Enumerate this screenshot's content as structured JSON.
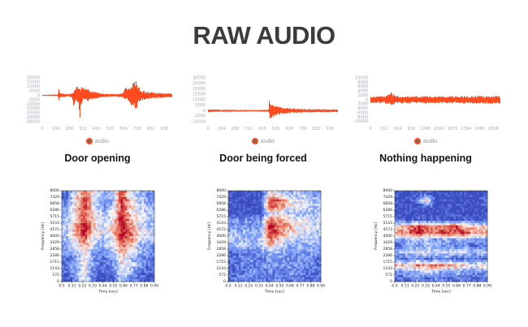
{
  "page": {
    "title": "RAW AUDIO",
    "background": "#ffffff"
  },
  "colors": {
    "waveform": "#ff4b1f",
    "axis_text": "#a4a9b4",
    "title_text": "#3b3b3b",
    "spectro_axis_text": "#222222",
    "legend_text": "#9a9a9a"
  },
  "legend": {
    "label": "audio",
    "marker_color": "#ff4b1f",
    "marker_center": "#6b6b6b"
  },
  "sections": [
    {
      "label": "Door opening"
    },
    {
      "label": "Door being forced"
    },
    {
      "label": "Nothing happening"
    }
  ],
  "chart_data": [
    {
      "name": "waveform-door-opening",
      "type": "line",
      "series": [
        {
          "name": "audio"
        }
      ],
      "color": "#ff4b1f",
      "x_range": [
        0,
        990
      ],
      "y_range": [
        -31500,
        21500
      ],
      "x_ticks": [
        0,
        104,
        208,
        312,
        416,
        520,
        624,
        728,
        832,
        936
      ],
      "y_ticks": [
        20000,
        15000,
        10000,
        5000,
        0,
        -5000,
        -10000,
        -15000,
        -20000,
        -25000,
        -30000
      ],
      "envelope": [
        [
          0,
          600,
          -600
        ],
        [
          40,
          700,
          -700
        ],
        [
          80,
          900,
          -900
        ],
        [
          105,
          1100,
          -1100
        ],
        [
          118,
          1500,
          -1200
        ],
        [
          125,
          8200,
          -5800
        ],
        [
          132,
          2600,
          -2600
        ],
        [
          150,
          2100,
          -2100
        ],
        [
          175,
          1600,
          -1600
        ],
        [
          205,
          1500,
          -1500
        ],
        [
          228,
          3500,
          -4500
        ],
        [
          238,
          4500,
          -12500
        ],
        [
          248,
          8000,
          -8000
        ],
        [
          262,
          11500,
          -8500
        ],
        [
          275,
          9000,
          -9500
        ],
        [
          288,
          6500,
          -27000
        ],
        [
          296,
          12000,
          -9000
        ],
        [
          310,
          9500,
          -7500
        ],
        [
          325,
          8000,
          -6500
        ],
        [
          340,
          7000,
          -7500
        ],
        [
          356,
          6200,
          -6200
        ],
        [
          372,
          5200,
          -5200
        ],
        [
          395,
          4200,
          -4200
        ],
        [
          425,
          2800,
          -2800
        ],
        [
          455,
          2000,
          -2000
        ],
        [
          490,
          1800,
          -1800
        ],
        [
          525,
          1600,
          -1600
        ],
        [
          558,
          1500,
          -1500
        ],
        [
          588,
          1800,
          -1800
        ],
        [
          612,
          2200,
          -2200
        ],
        [
          628,
          6000,
          -4000
        ],
        [
          638,
          17000,
          -7000
        ],
        [
          648,
          6000,
          -5000
        ],
        [
          662,
          8500,
          -8500
        ],
        [
          678,
          11000,
          -11500
        ],
        [
          695,
          14000,
          -13000
        ],
        [
          708,
          20000,
          -14500
        ],
        [
          722,
          13500,
          -15000
        ],
        [
          736,
          10000,
          -9000
        ],
        [
          750,
          7500,
          -6500
        ],
        [
          765,
          5500,
          -5500
        ],
        [
          790,
          4300,
          -4300
        ],
        [
          820,
          3700,
          -3700
        ],
        [
          850,
          3200,
          -3200
        ],
        [
          882,
          2900,
          -2900
        ],
        [
          912,
          2600,
          -2600
        ],
        [
          942,
          2400,
          -2400
        ],
        [
          970,
          2200,
          -2200
        ],
        [
          990,
          2100,
          -2100
        ]
      ]
    },
    {
      "name": "waveform-door-being-forced",
      "type": "line",
      "series": [
        {
          "name": "audio"
        }
      ],
      "color": "#ff4b1f",
      "x_range": [
        0,
        990
      ],
      "y_range": [
        -11500,
        31500
      ],
      "x_ticks": [
        0,
        104,
        208,
        312,
        416,
        520,
        624,
        728,
        832,
        936
      ],
      "y_ticks": [
        30000,
        25000,
        20000,
        15000,
        10000,
        5000,
        0,
        -5000,
        -10000
      ],
      "envelope": [
        [
          0,
          1300,
          -1300
        ],
        [
          40,
          1100,
          -1100
        ],
        [
          90,
          950,
          -950
        ],
        [
          150,
          900,
          -900
        ],
        [
          210,
          850,
          -850
        ],
        [
          270,
          800,
          -800
        ],
        [
          330,
          750,
          -750
        ],
        [
          390,
          750,
          -750
        ],
        [
          435,
          800,
          -800
        ],
        [
          458,
          950,
          -950
        ],
        [
          465,
          1500,
          -1500
        ],
        [
          469,
          26000,
          -4500
        ],
        [
          473,
          9000,
          -7800
        ],
        [
          480,
          6500,
          -6800
        ],
        [
          492,
          5500,
          -5600
        ],
        [
          508,
          4800,
          -4900
        ],
        [
          524,
          4200,
          -4300
        ],
        [
          542,
          3700,
          -3700
        ],
        [
          562,
          3200,
          -3200
        ],
        [
          584,
          2800,
          -2800
        ],
        [
          608,
          2500,
          -2500
        ],
        [
          635,
          2200,
          -2200
        ],
        [
          665,
          2000,
          -2000
        ],
        [
          700,
          1800,
          -1800
        ],
        [
          740,
          1600,
          -1600
        ],
        [
          785,
          1500,
          -1500
        ],
        [
          835,
          1400,
          -1400
        ],
        [
          885,
          1350,
          -1350
        ],
        [
          935,
          1300,
          -1300
        ],
        [
          990,
          1250,
          -1250
        ]
      ]
    },
    {
      "name": "waveform-nothing-happening",
      "type": "line",
      "series": [
        {
          "name": "audio"
        }
      ],
      "color": "#ff4b1f",
      "x_range": [
        0,
        2950
      ],
      "y_range": [
        -10800,
        10800
      ],
      "x_ticks": [
        0,
        312,
        624,
        936,
        1248,
        1560,
        1872,
        2184,
        2496,
        2808
      ],
      "y_ticks": [
        10000,
        8000,
        6000,
        4000,
        2000,
        0,
        -2000,
        -4000,
        -6000,
        -8000,
        -10000
      ],
      "envelope": [
        [
          0,
          1400,
          -1400
        ],
        [
          150,
          1500,
          -1500
        ],
        [
          300,
          1700,
          -1600
        ],
        [
          380,
          2000,
          -1800
        ],
        [
          430,
          2900,
          -2100
        ],
        [
          465,
          3600,
          -2400
        ],
        [
          500,
          2600,
          -2200
        ],
        [
          560,
          2000,
          -1900
        ],
        [
          650,
          1700,
          -1700
        ],
        [
          800,
          1550,
          -1550
        ],
        [
          950,
          1650,
          -1650
        ],
        [
          1100,
          1500,
          -1500
        ],
        [
          1250,
          1600,
          -1550
        ],
        [
          1400,
          1500,
          -1500
        ],
        [
          1550,
          1600,
          -1600
        ],
        [
          1700,
          1500,
          -1500
        ],
        [
          1850,
          1700,
          -1650
        ],
        [
          2000,
          1550,
          -1550
        ],
        [
          2150,
          1750,
          -1700
        ],
        [
          2300,
          1600,
          -1600
        ],
        [
          2450,
          1850,
          -1750
        ],
        [
          2600,
          1600,
          -1600
        ],
        [
          2750,
          1700,
          -1700
        ],
        [
          2870,
          1800,
          -1750
        ],
        [
          2950,
          1650,
          -1650
        ]
      ]
    },
    {
      "name": "spectrogram-door-opening",
      "type": "heatmap",
      "x_label": "Time [sec]",
      "y_label": "Frequency [Hz]",
      "x_ticks": [
        "0.0",
        "0.11",
        "0.22",
        "0.33",
        "0.44",
        "0.55",
        "0.66",
        "0.77",
        "0.88",
        "0.99"
      ],
      "y_ticks": [
        8000,
        7429,
        6858,
        6286,
        5715,
        5143,
        4572,
        4000,
        3429,
        2858,
        2286,
        1715,
        1143,
        572,
        0
      ],
      "colormap": "coolwarm",
      "intensity_scale": [
        0,
        9
      ],
      "grid": [
        [
          1,
          4,
          7,
          4,
          3,
          3,
          8,
          4,
          3,
          2
        ],
        [
          1,
          5,
          8,
          4,
          2,
          3,
          8,
          5,
          3,
          2
        ],
        [
          2,
          5,
          8,
          4,
          2,
          3,
          8,
          5,
          4,
          3
        ],
        [
          2,
          5,
          7,
          5,
          3,
          4,
          8,
          5,
          4,
          3
        ],
        [
          3,
          5,
          8,
          5,
          3,
          4,
          9,
          6,
          4,
          3
        ],
        [
          3,
          6,
          9,
          5,
          4,
          5,
          9,
          6,
          4,
          3
        ],
        [
          3,
          6,
          9,
          5,
          4,
          5,
          9,
          7,
          5,
          4
        ],
        [
          3,
          5,
          7,
          4,
          3,
          4,
          8,
          6,
          4,
          3
        ],
        [
          2,
          4,
          6,
          3,
          3,
          4,
          7,
          5,
          3,
          2
        ],
        [
          2,
          3,
          5,
          2,
          2,
          3,
          6,
          4,
          3,
          2
        ],
        [
          1,
          2,
          5,
          2,
          1,
          2,
          5,
          3,
          2,
          1
        ],
        [
          1,
          3,
          4,
          2,
          1,
          2,
          5,
          4,
          2,
          1
        ],
        [
          1,
          2,
          5,
          1,
          1,
          1,
          4,
          3,
          1,
          1
        ],
        [
          0,
          2,
          4,
          1,
          0,
          1,
          4,
          2,
          1,
          0
        ]
      ]
    },
    {
      "name": "spectrogram-door-being-forced",
      "type": "heatmap",
      "x_label": "Time [sec]",
      "y_label": "Frequency [Hz]",
      "x_ticks": [
        "0.0",
        "0.11",
        "0.22",
        "0.33",
        "0.44",
        "0.55",
        "0.66",
        "0.77",
        "0.88",
        "0.99"
      ],
      "y_ticks": [
        8000,
        7429,
        6858,
        6286,
        5715,
        5143,
        4572,
        4000,
        3429,
        2858,
        2286,
        1715,
        1143,
        572,
        0
      ],
      "colormap": "coolwarm",
      "intensity_scale": [
        0,
        9
      ],
      "grid": [
        [
          0,
          0,
          0,
          0,
          5,
          4,
          3,
          3,
          3,
          2
        ],
        [
          0,
          0,
          0,
          0,
          8,
          7,
          5,
          4,
          4,
          3
        ],
        [
          0,
          0,
          0,
          0,
          8,
          6,
          5,
          4,
          4,
          3
        ],
        [
          0,
          0,
          0,
          0,
          4,
          4,
          3,
          3,
          3,
          3
        ],
        [
          2,
          2,
          2,
          2,
          7,
          6,
          5,
          4,
          4,
          3
        ],
        [
          2,
          2,
          2,
          2,
          9,
          7,
          6,
          5,
          4,
          4
        ],
        [
          3,
          3,
          3,
          3,
          8,
          7,
          5,
          4,
          4,
          3
        ],
        [
          3,
          3,
          3,
          3,
          7,
          5,
          4,
          3,
          3,
          3
        ],
        [
          3,
          3,
          3,
          3,
          5,
          4,
          3,
          3,
          3,
          2
        ],
        [
          1,
          2,
          1,
          2,
          3,
          3,
          2,
          2,
          2,
          2
        ],
        [
          1,
          1,
          2,
          1,
          2,
          2,
          2,
          2,
          2,
          1
        ],
        [
          1,
          2,
          1,
          2,
          2,
          2,
          2,
          2,
          2,
          1
        ],
        [
          1,
          1,
          2,
          1,
          2,
          1,
          2,
          2,
          1,
          1
        ],
        [
          1,
          2,
          1,
          2,
          1,
          2,
          1,
          2,
          1,
          1
        ]
      ]
    },
    {
      "name": "spectrogram-nothing-happening",
      "type": "heatmap",
      "x_label": "Time [sec]",
      "y_label": "Frequency [Hz]",
      "x_ticks": [
        "0.0",
        "0.11",
        "0.22",
        "0.33",
        "0.44",
        "0.55",
        "0.66",
        "0.77",
        "0.88",
        "0.99"
      ],
      "y_ticks": [
        8000,
        7429,
        6858,
        6286,
        5715,
        5143,
        4572,
        4000,
        3429,
        2858,
        2286,
        1715,
        1143,
        572,
        0
      ],
      "colormap": "coolwarm",
      "intensity_scale": [
        0,
        9
      ],
      "grid": [
        [
          0,
          0,
          0,
          1,
          0,
          0,
          0,
          0,
          0,
          0
        ],
        [
          0,
          0,
          2,
          5,
          0,
          0,
          0,
          0,
          0,
          1
        ],
        [
          0,
          0,
          0,
          1,
          0,
          0,
          0,
          0,
          0,
          0
        ],
        [
          0,
          0,
          0,
          0,
          0,
          0,
          0,
          0,
          0,
          0
        ],
        [
          1,
          0,
          1,
          0,
          1,
          0,
          0,
          1,
          0,
          0
        ],
        [
          5,
          6,
          8,
          7,
          6,
          7,
          8,
          6,
          5,
          5
        ],
        [
          6,
          7,
          9,
          7,
          7,
          8,
          7,
          8,
          6,
          6
        ],
        [
          2,
          3,
          4,
          3,
          2,
          3,
          2,
          3,
          2,
          2
        ],
        [
          1,
          2,
          2,
          3,
          2,
          2,
          2,
          2,
          1,
          1
        ],
        [
          3,
          4,
          4,
          4,
          4,
          4,
          4,
          4,
          3,
          3
        ],
        [
          1,
          1,
          2,
          1,
          1,
          2,
          1,
          1,
          1,
          1
        ],
        [
          6,
          5,
          7,
          6,
          7,
          6,
          6,
          5,
          4,
          5
        ],
        [
          2,
          3,
          2,
          4,
          3,
          2,
          3,
          2,
          2,
          2
        ],
        [
          1,
          1,
          2,
          1,
          2,
          1,
          1,
          2,
          1,
          1
        ]
      ]
    }
  ]
}
